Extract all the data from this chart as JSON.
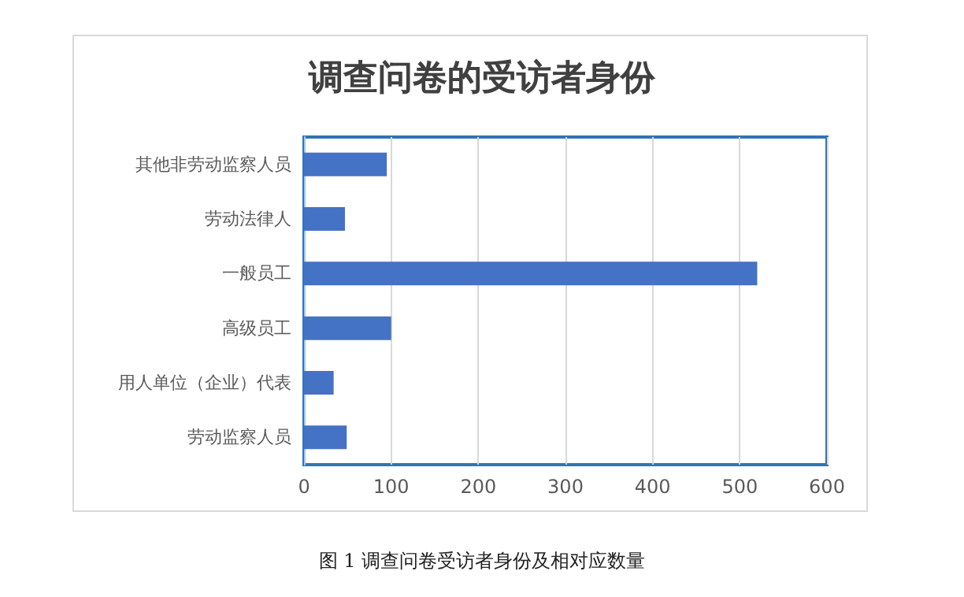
{
  "chart_data": {
    "type": "bar",
    "orientation": "horizontal",
    "title": "调查问卷的受访者身份",
    "categories": [
      "其他非劳动监察人员",
      "劳动法律人",
      "一般员工",
      "高级员工",
      "用人单位（企业）代表",
      "劳动监察人员"
    ],
    "values": [
      95,
      47,
      520,
      100,
      34,
      49
    ],
    "color": "#4472c4",
    "xlim": [
      0,
      600
    ],
    "xticks": [
      0,
      100,
      200,
      300,
      400,
      500,
      600
    ],
    "grid": "x",
    "annotations": [
      "图 1 调查问卷受访者身份及相对应数量"
    ]
  }
}
